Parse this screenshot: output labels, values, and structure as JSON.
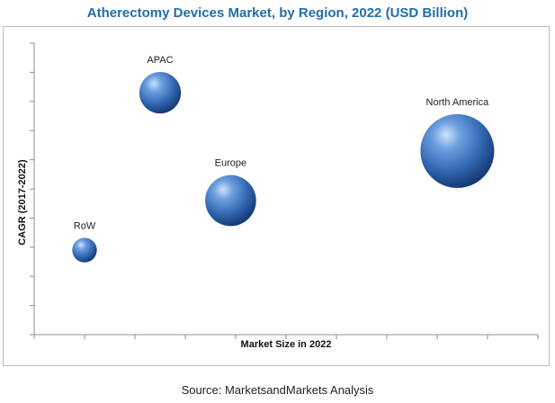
{
  "title": "Atherectomy Devices Market, by Region, 2022 (USD Billion)",
  "source": "Source: MarketsandMarkets Analysis",
  "colors": {
    "title": "#1f6fa8",
    "bubble": "#3a6fb5"
  },
  "chart_data": {
    "type": "bubble",
    "title": "Atherectomy Devices Market, by Region, 2022 (USD Billion)",
    "xlabel": "Market Size in 2022",
    "ylabel": "CAGR (2017-2022)",
    "xlim": [
      0,
      10
    ],
    "ylim": [
      0,
      10
    ],
    "grid": false,
    "legend": "none",
    "points": [
      {
        "label": "APAC",
        "x": 2.5,
        "y": 8.3,
        "size": 2.0
      },
      {
        "label": "Europe",
        "x": 3.9,
        "y": 4.6,
        "size": 3.0
      },
      {
        "label": "North America",
        "x": 8.4,
        "y": 6.3,
        "size": 6.3
      },
      {
        "label": "RoW",
        "x": 1.0,
        "y": 2.9,
        "size": 0.7
      }
    ]
  }
}
